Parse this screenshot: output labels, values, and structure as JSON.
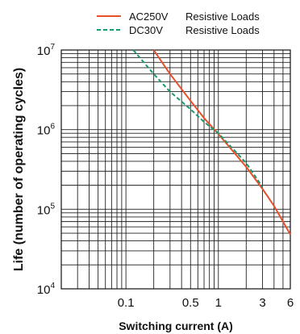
{
  "chart_data": {
    "type": "line",
    "xlabel": "Switching current (A)",
    "ylabel": "Life (number of operating cycles)",
    "x_scale": "log",
    "y_scale": "log",
    "xlim": [
      0.02,
      6
    ],
    "ylim": [
      10000,
      10000000
    ],
    "x_ticks": [
      {
        "value": 0.1,
        "label": "0.1"
      },
      {
        "value": 0.5,
        "label": "0.5"
      },
      {
        "value": 1,
        "label": "1"
      },
      {
        "value": 3,
        "label": "3"
      },
      {
        "value": 6,
        "label": "6"
      }
    ],
    "y_ticks": [
      {
        "value": 10000,
        "base": "10",
        "exp": "4"
      },
      {
        "value": 100000,
        "base": "10",
        "exp": "5"
      },
      {
        "value": 1000000,
        "base": "10",
        "exp": "6"
      },
      {
        "value": 10000000,
        "base": "10",
        "exp": "7"
      }
    ],
    "grid": true,
    "legend": [
      {
        "voltage": "AC250V",
        "load": "Resistive Loads",
        "color": "#e8502c",
        "style": "solid"
      },
      {
        "voltage": "DC30V",
        "load": "Resistive Loads",
        "color": "#1a9a6c",
        "style": "dashed"
      }
    ],
    "series": [
      {
        "name": "AC250V",
        "color": "#e8502c",
        "dash": false,
        "x": [
          0.2,
          0.3,
          0.5,
          0.7,
          1,
          2,
          3,
          4,
          5,
          6
        ],
        "y": [
          10000000,
          5000000,
          2300000,
          1400000,
          880000,
          340000,
          180000,
          110000,
          70000,
          48000
        ]
      },
      {
        "name": "DC30V",
        "color": "#1a9a6c",
        "dash": true,
        "x": [
          0.12,
          0.2,
          0.3,
          0.5,
          0.7,
          1,
          2,
          3
        ],
        "y": [
          10000000,
          5000000,
          3000000,
          1800000,
          1250000,
          900000,
          380000,
          190000
        ]
      }
    ]
  }
}
